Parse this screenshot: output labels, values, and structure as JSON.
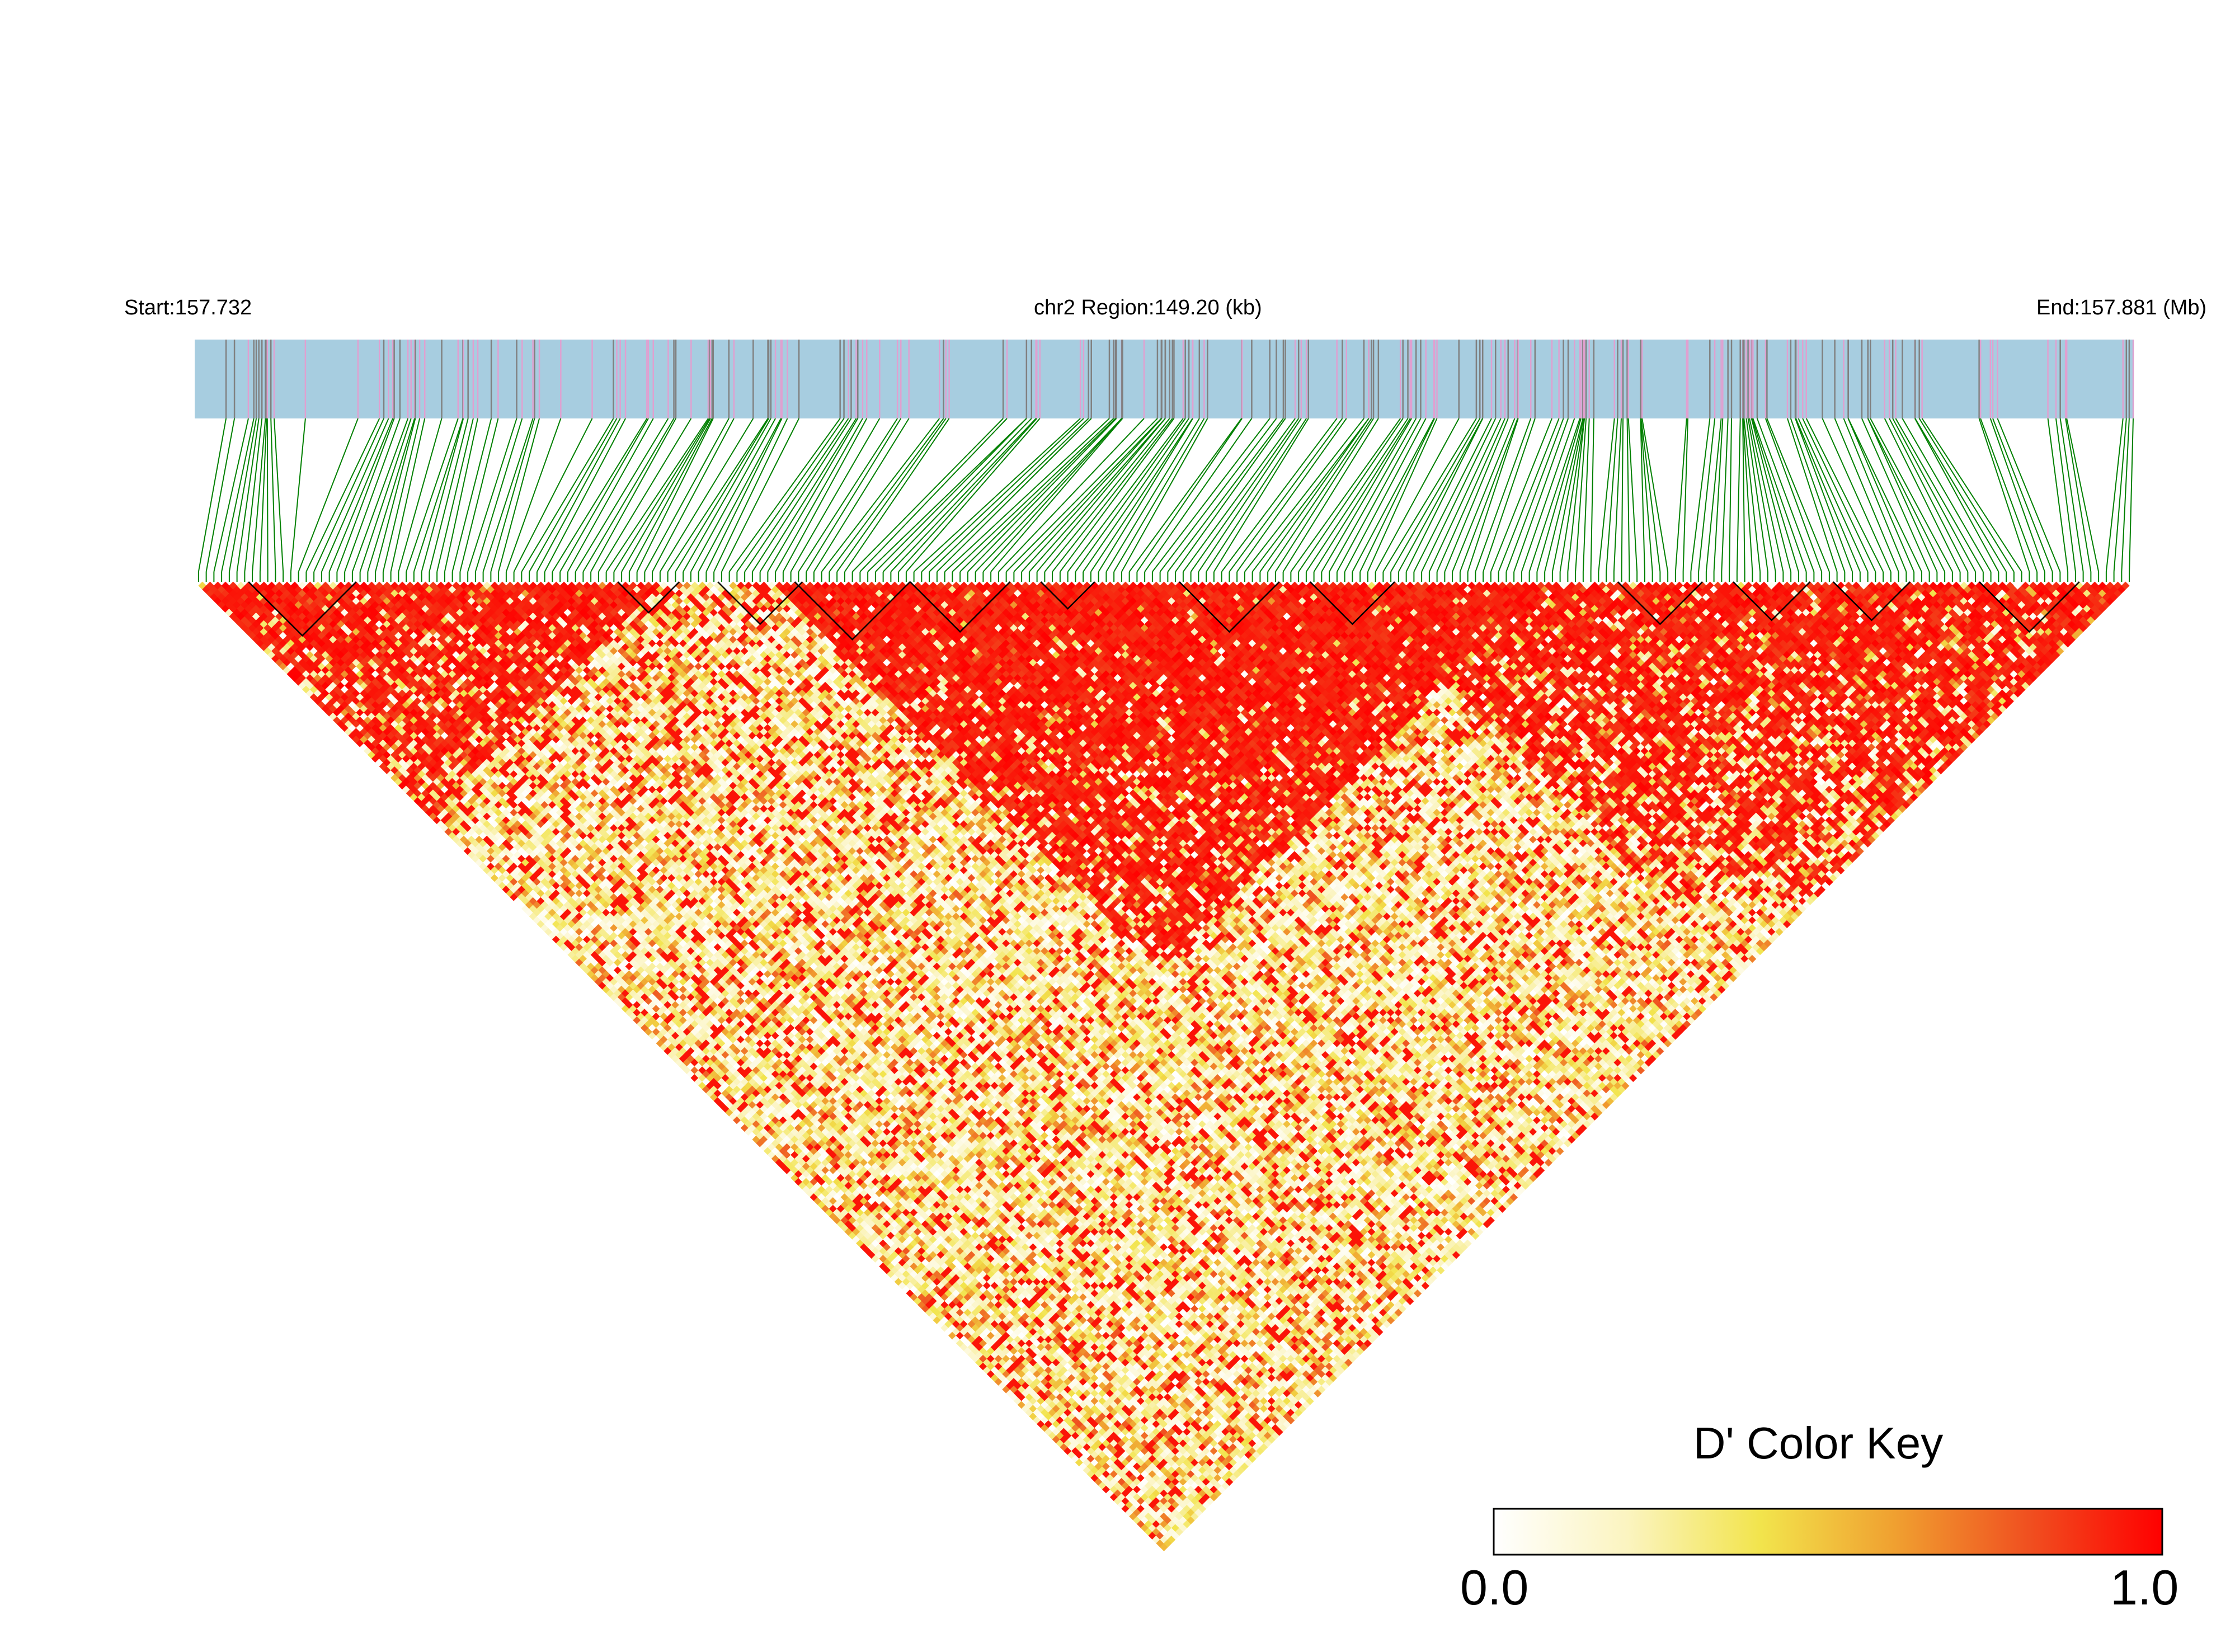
{
  "header": {
    "start_label": "Start:157.732",
    "region_label": "chr2 Region:149.20 (kb)",
    "end_label": "End:157.881 (Mb)"
  },
  "color_key": {
    "title": "D' Color Key",
    "min_label": "0.0",
    "max_label": "1.0",
    "stops": [
      "#ffffff",
      "#fbf4c0",
      "#f2e44c",
      "#f0a030",
      "#f05020",
      "#ff0000"
    ]
  },
  "colors": {
    "track_fill": "#a7cde0",
    "snp_pink": "#e0a0d0",
    "snp_gray": "#808080",
    "connector_green": "#008000",
    "block_outline": "#000000"
  },
  "chart_data": {
    "type": "heatmap",
    "title": "",
    "xlabel": "",
    "ylabel": "",
    "region": {
      "chromosome": "chr2",
      "start_mb": 157.732,
      "end_mb": 157.881,
      "length_kb": 149.2
    },
    "metric": "D'",
    "value_range": [
      0.0,
      1.0
    ],
    "snp_count": 252,
    "high_ld_blocks": [
      {
        "from_snp": 7,
        "to_snp": 20
      },
      {
        "from_snp": 55,
        "to_snp": 62
      },
      {
        "from_snp": 68,
        "to_snp": 78
      },
      {
        "from_snp": 78,
        "to_snp": 92
      },
      {
        "from_snp": 93,
        "to_snp": 105
      },
      {
        "from_snp": 110,
        "to_snp": 116
      },
      {
        "from_snp": 128,
        "to_snp": 140
      },
      {
        "from_snp": 145,
        "to_snp": 155
      },
      {
        "from_snp": 185,
        "to_snp": 195
      },
      {
        "from_snp": 200,
        "to_snp": 209
      },
      {
        "from_snp": 213,
        "to_snp": 222
      },
      {
        "from_snp": 232,
        "to_snp": 244
      }
    ]
  }
}
